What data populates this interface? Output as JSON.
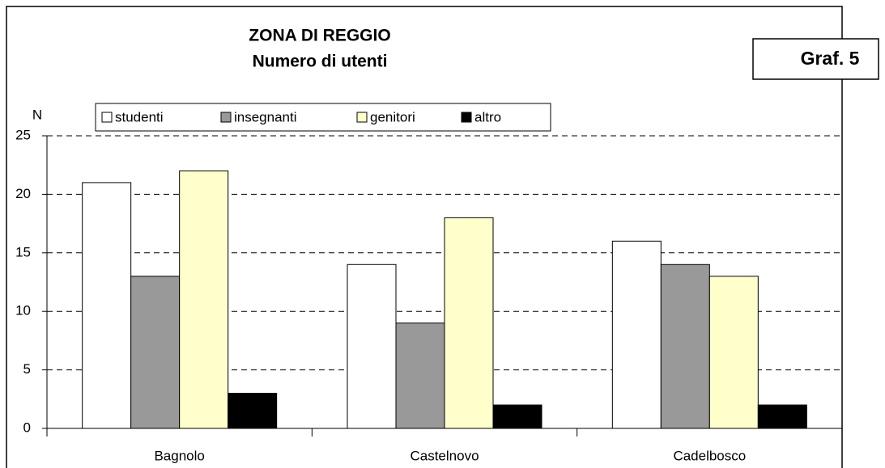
{
  "chart_data": {
    "type": "bar",
    "title": "ZONA DI REGGIO",
    "subtitle": "Numero di utenti",
    "tag": "Graf. 5",
    "y_label": "N",
    "categories": [
      "Bagnolo",
      "Castelnovo",
      "Cadelbosco"
    ],
    "series": [
      {
        "name": "studenti",
        "color": "#ffffff",
        "values": [
          21,
          14,
          16
        ]
      },
      {
        "name": "insegnanti",
        "color": "#999999",
        "values": [
          13,
          9,
          14
        ]
      },
      {
        "name": "genitori",
        "color": "#ffffcc",
        "values": [
          22,
          18,
          13
        ]
      },
      {
        "name": "altro",
        "color": "#000000",
        "values": [
          3,
          2,
          2
        ]
      }
    ],
    "ylim": [
      0,
      25
    ],
    "yticks": [
      0,
      5,
      10,
      15,
      20,
      25
    ],
    "grid": true,
    "legend": "top"
  }
}
